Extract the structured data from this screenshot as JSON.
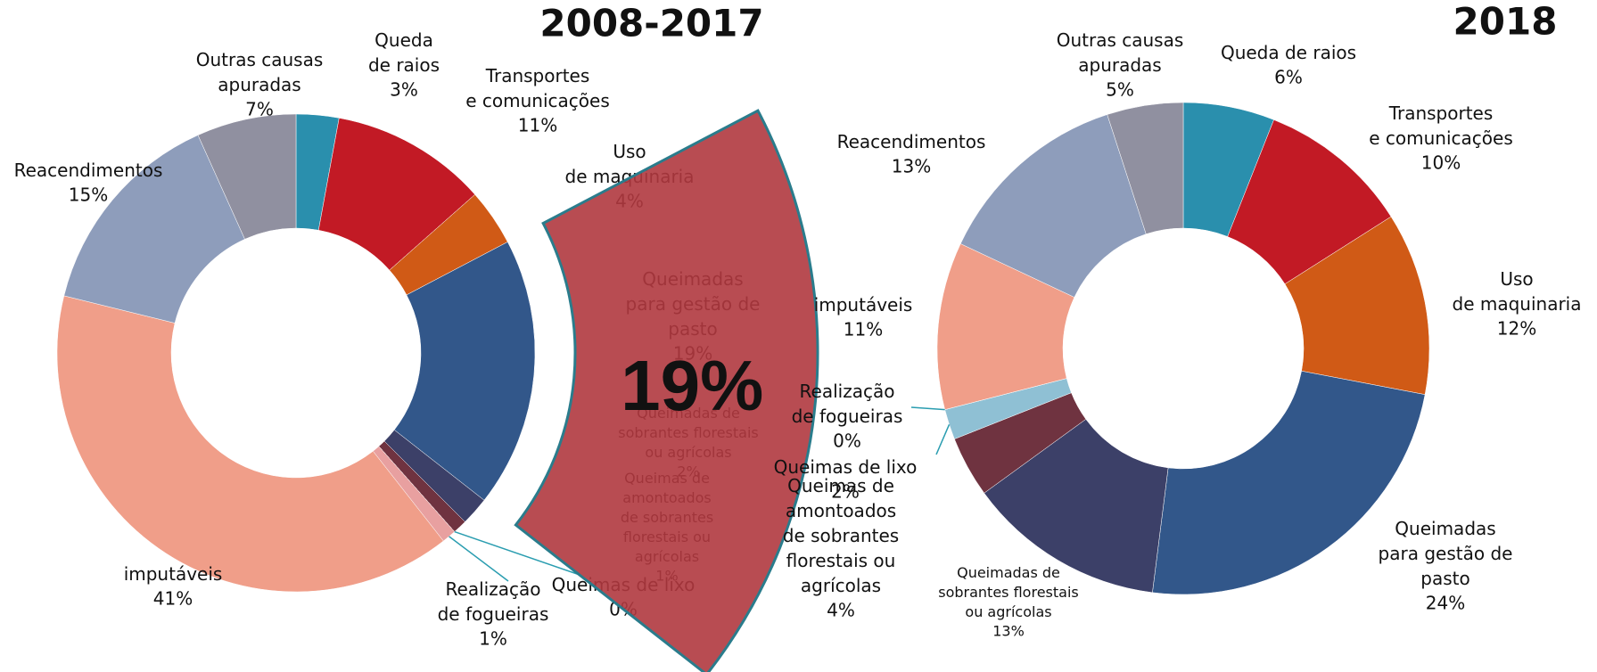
{
  "chart_data": [
    {
      "type": "pie",
      "title": "2008-2017",
      "highlight": 3,
      "categories": [
        "Queda de raios",
        "Transportes e comunicações",
        "Uso de maquinaria",
        "Queimadas para gestão de pasto",
        "Queimadas de sobrantes florestais ou agrícolas",
        "Queimas de amontoados de sobrantes florestais ou agrícolas",
        "Queimas de lixo",
        "Realização de fogueiras",
        "imputáveis",
        "Reacendimentos",
        "Outras causas apuradas"
      ],
      "values": [
        3,
        11,
        4,
        19,
        2,
        1,
        0,
        1,
        41,
        15,
        7
      ],
      "value_labels": [
        "3%",
        "11%",
        "4%",
        "19%",
        "2%",
        "1%",
        "0%",
        "1%",
        "41%",
        "15%",
        "7%"
      ],
      "colors": [
        "#2a8fad",
        "#c21a25",
        "#d05a16",
        "#32578a",
        "#3c4068",
        "#6f3340",
        "#8fc0d4",
        "#e8a0a0",
        "#f09e89",
        "#8e9dbb",
        "#9090a0"
      ]
    },
    {
      "type": "pie",
      "title": "2018",
      "categories": [
        "Queda de raios",
        "Transportes e comunicações",
        "Uso de maquinaria",
        "Queimadas para gestão de pasto",
        "Queimadas de sobrantes florestais ou agrícolas",
        "Queimas de amontoados de sobrantes florestais ou agrícolas",
        "Queimas de lixo",
        "Realização de fogueiras",
        "imputáveis",
        "Reacendimentos",
        "Outras causas apuradas"
      ],
      "values": [
        6,
        10,
        12,
        24,
        13,
        4,
        2,
        0,
        11,
        13,
        5
      ],
      "value_labels": [
        "6%",
        "10%",
        "12%",
        "24%",
        "13%",
        "4%",
        "2%",
        "0%",
        "11%",
        "13%",
        "5%"
      ],
      "colors": [
        "#2a8fad",
        "#c21a25",
        "#d05a16",
        "#32578a",
        "#3c4068",
        "#6f3340",
        "#8fc0d4",
        "#e8a0a0",
        "#f09e89",
        "#8e9dbb",
        "#9090a0"
      ]
    }
  ]
}
